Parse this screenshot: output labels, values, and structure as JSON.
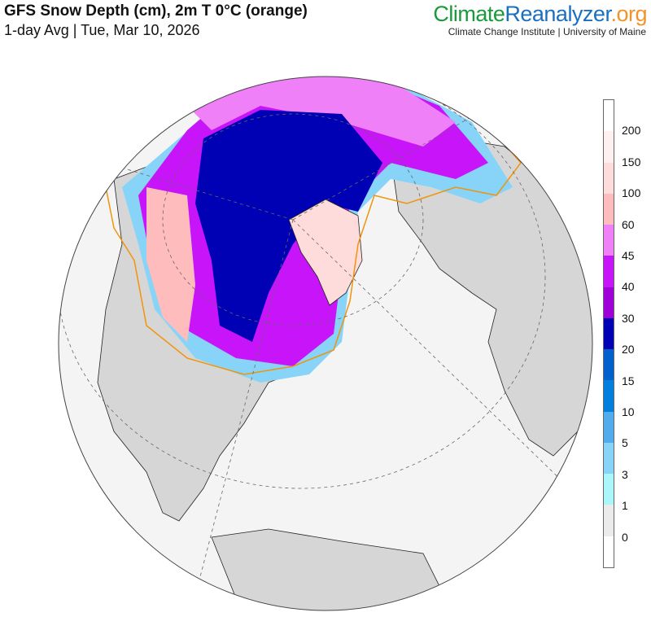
{
  "header": {
    "title": "GFS Snow Depth (cm), 2m T 0°C (orange)",
    "subtitle": "1-day Avg | Tue, Mar 10, 2026"
  },
  "logo": {
    "part1": "Climate",
    "part2": "Reanalyzer",
    "part3": ".org",
    "institution": "Climate Change Institute | University of Maine"
  },
  "colorbar": {
    "labels": [
      "200",
      "150",
      "100",
      "60",
      "45",
      "40",
      "30",
      "20",
      "15",
      "10",
      "5",
      "3",
      "1",
      "0"
    ],
    "colors": [
      "#ffffff",
      "#fff0f0",
      "#ffdcdc",
      "#ffbcbc",
      "#f080f8",
      "#c814f8",
      "#a000d8",
      "#0000b4",
      "#0060cc",
      "#0080dc",
      "#50acec",
      "#88d4f8",
      "#aaf6fa",
      "#ebebeb",
      "#ffffff"
    ]
  },
  "map": {
    "projection": "orthographic, north-polar view",
    "freezing_line_color": "#f0940a",
    "land_color": "#d6d6d6",
    "ocean_color": "#f4f4f4"
  }
}
